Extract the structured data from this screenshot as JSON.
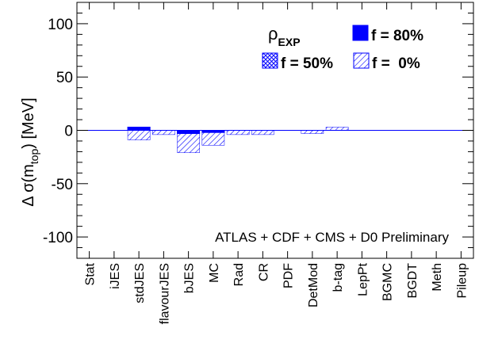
{
  "chart_data": {
    "type": "bar",
    "ylabel_prefix": "Δ σ(m",
    "ylabel_sub": "top",
    "ylabel_suffix": ") [MeV]",
    "ylim": [
      -120,
      120
    ],
    "yticks": [
      100,
      50,
      0,
      -50,
      -100
    ],
    "categories": [
      "Stat",
      "iJES",
      "stdJES",
      "flavourJES",
      "bJES",
      "MC",
      "Rad",
      "CR",
      "PDF",
      "DetMod",
      "b-tag",
      "LepPt",
      "BGMC",
      "BGDT",
      "Meth",
      "Pileup"
    ],
    "series": [
      {
        "name": "f = 80%",
        "style": "solid",
        "values": [
          0,
          0,
          3,
          0,
          -3,
          -2,
          0,
          0,
          0,
          0,
          0,
          0,
          0,
          0,
          0,
          0
        ]
      },
      {
        "name": "f = 50%",
        "style": "crosshatch",
        "values": [
          0,
          0,
          0,
          0,
          0,
          0,
          0,
          0,
          0,
          0,
          0,
          0,
          0,
          0,
          0,
          0
        ]
      },
      {
        "name": "f =  0%",
        "style": "diagonal",
        "values": [
          0,
          0,
          -9,
          -4,
          -21,
          -14,
          -4,
          -4,
          0,
          -3,
          3,
          0,
          0,
          0,
          0,
          0
        ]
      }
    ],
    "legend": {
      "rho_label": "ρ",
      "rho_sub": "EXP",
      "position": "top-right"
    },
    "annotation": "ATLAS + CDF + CMS + D0 Preliminary",
    "colors": {
      "bar": "#0000ff",
      "axis": "#000000"
    },
    "grid": false
  }
}
